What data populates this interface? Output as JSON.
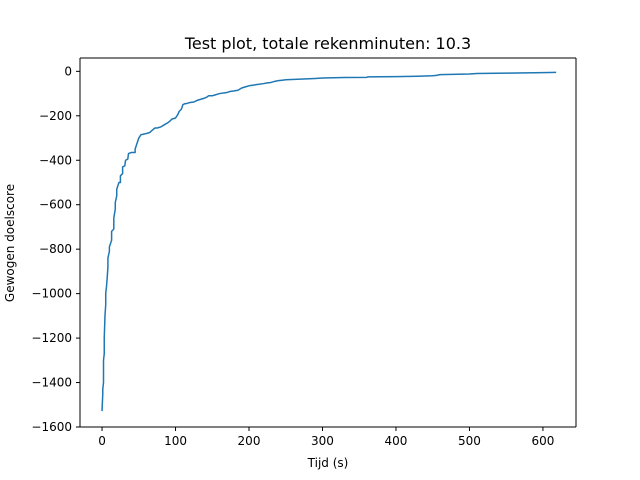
{
  "chart_data": {
    "type": "line",
    "title": "Test plot, totale rekenminuten: 10.3",
    "xlabel": "Tijd (s)",
    "ylabel": "Gewogen doelscore",
    "xlim": [
      -30,
      645
    ],
    "ylim": [
      -1600,
      60
    ],
    "x_ticks": [
      0,
      100,
      200,
      300,
      400,
      500,
      600
    ],
    "y_ticks": [
      0,
      -200,
      -400,
      -600,
      -800,
      -1000,
      -1200,
      -1400,
      -1600
    ],
    "x_tick_labels": [
      "0",
      "100",
      "200",
      "300",
      "400",
      "500",
      "600"
    ],
    "y_tick_labels": [
      "0",
      "−200",
      "−400",
      "−600",
      "−800",
      "−1000",
      "−1200",
      "−1400",
      "−1600"
    ],
    "grid": false,
    "legend": "none",
    "series": [
      {
        "color": "#1f77b4",
        "x": [
          0,
          1,
          1,
          2,
          2,
          3,
          3,
          4,
          5,
          5,
          6,
          7,
          8,
          8,
          10,
          10,
          13,
          13,
          16,
          16,
          18,
          18,
          20,
          20,
          22,
          23,
          25,
          25,
          28,
          28,
          31,
          32,
          35,
          36,
          40,
          40,
          45,
          45,
          50,
          50,
          52,
          53,
          56,
          60,
          65,
          70,
          72,
          75,
          80,
          85,
          90,
          92,
          95,
          100,
          103,
          105,
          108,
          110,
          113,
          115,
          120,
          125,
          130,
          135,
          140,
          143,
          145,
          150,
          153,
          160,
          170,
          175,
          180,
          185,
          190,
          195,
          200,
          210,
          220,
          225,
          230,
          235,
          240,
          245,
          250,
          270,
          290,
          300,
          330,
          360,
          362,
          400,
          430,
          450,
          455,
          460,
          500,
          510,
          550,
          600,
          617
        ],
        "y": [
          -1525,
          -1450,
          -1430,
          -1400,
          -1300,
          -1270,
          -1200,
          -1100,
          -1050,
          -1000,
          -970,
          -930,
          -880,
          -840,
          -810,
          -790,
          -760,
          -720,
          -710,
          -660,
          -620,
          -590,
          -560,
          -530,
          -510,
          -500,
          -500,
          -470,
          -460,
          -430,
          -425,
          -400,
          -395,
          -370,
          -365,
          -365,
          -365,
          -350,
          -300,
          -300,
          -290,
          -285,
          -283,
          -280,
          -275,
          -260,
          -255,
          -255,
          -250,
          -240,
          -230,
          -225,
          -215,
          -210,
          -195,
          -180,
          -170,
          -150,
          -145,
          -145,
          -140,
          -138,
          -130,
          -125,
          -120,
          -115,
          -110,
          -110,
          -107,
          -100,
          -95,
          -90,
          -88,
          -85,
          -75,
          -70,
          -65,
          -60,
          -55,
          -52,
          -50,
          -45,
          -42,
          -40,
          -38,
          -35,
          -32,
          -30,
          -28,
          -27,
          -25,
          -24,
          -22,
          -20,
          -18,
          -15,
          -12,
          -10,
          -8,
          -6,
          -5
        ]
      }
    ]
  }
}
